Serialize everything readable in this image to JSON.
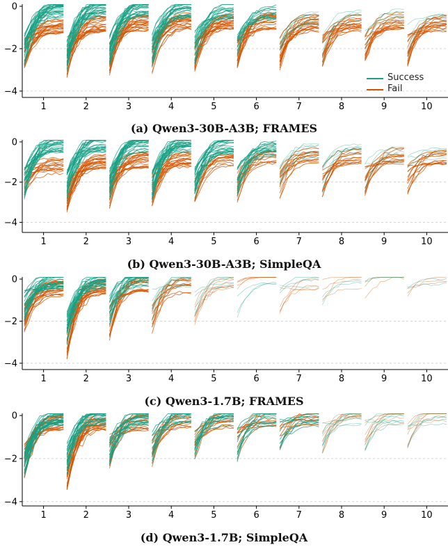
{
  "colors": {
    "success": "#16a085",
    "fail": "#d35400",
    "axis": "#000000",
    "grid": "#bbbbbb"
  },
  "legend": {
    "success_label": "Success",
    "fail_label": "Fail",
    "placement": "bottom-right of panel (a)"
  },
  "chart_data": [
    {
      "type": "line",
      "title": "(a) Qwen3-30B-A3B; FRAMES",
      "categories": [
        "1",
        "2",
        "3",
        "4",
        "5",
        "6",
        "7",
        "8",
        "9",
        "10"
      ],
      "ylim": [
        -4.3,
        0.1
      ],
      "yticks": [
        0,
        -2,
        -4
      ],
      "grid": "dashed horizontal at -2 and -4",
      "series": [
        {
          "name": "Success",
          "start": [
            -2.4,
            -2.6,
            -2.5,
            -2.4,
            -2.3,
            -2.3,
            -2.2,
            -2.3,
            -2.2,
            -2.0
          ],
          "end": [
            -0.15,
            -0.1,
            -0.12,
            -0.15,
            -0.2,
            -0.3,
            -0.5,
            -0.6,
            -0.5,
            -0.6
          ],
          "density": [
            1.0,
            1.0,
            1.0,
            0.9,
            0.6,
            0.45,
            0.3,
            0.2,
            0.15,
            0.15
          ]
        },
        {
          "name": "Fail",
          "start": [
            -2.6,
            -2.9,
            -2.8,
            -2.7,
            -2.6,
            -2.6,
            -2.5,
            -2.5,
            -2.4,
            -2.4
          ],
          "end": [
            -0.9,
            -0.8,
            -0.8,
            -0.7,
            -0.7,
            -0.7,
            -0.8,
            -0.8,
            -0.7,
            -0.8
          ],
          "density": [
            0.9,
            0.9,
            0.9,
            0.9,
            0.9,
            0.8,
            0.8,
            0.7,
            0.6,
            0.6
          ]
        }
      ]
    },
    {
      "type": "line",
      "title": "(b) Qwen3-30B-A3B; SimpleQA",
      "categories": [
        "1",
        "2",
        "3",
        "4",
        "5",
        "6",
        "7",
        "8",
        "9",
        "10"
      ],
      "ylim": [
        -4.5,
        0.1
      ],
      "yticks": [
        0,
        -2,
        -4
      ],
      "grid": "dashed horizontal at -2 and -4",
      "series": [
        {
          "name": "Success",
          "start": [
            -2.4,
            -2.5,
            -2.4,
            -2.4,
            -2.4,
            -2.3,
            -2.2,
            -2.1,
            -2.0,
            -1.8
          ],
          "end": [
            -0.1,
            -0.1,
            -0.1,
            -0.1,
            -0.2,
            -0.3,
            -0.4,
            -0.5,
            -0.6,
            -0.5
          ],
          "density": [
            1.0,
            1.0,
            1.0,
            1.0,
            0.9,
            0.6,
            0.3,
            0.25,
            0.2,
            0.15
          ]
        },
        {
          "name": "Fail",
          "start": [
            -2.3,
            -3.2,
            -2.8,
            -2.7,
            -2.6,
            -2.5,
            -2.4,
            -2.3,
            -2.3,
            -2.2
          ],
          "end": [
            -1.2,
            -1.0,
            -0.9,
            -0.9,
            -0.8,
            -0.8,
            -0.7,
            -0.7,
            -0.7,
            -0.7
          ],
          "density": [
            0.6,
            0.9,
            0.9,
            0.8,
            0.5,
            0.5,
            0.5,
            0.5,
            0.5,
            0.5
          ]
        }
      ]
    },
    {
      "type": "line",
      "title": "(c) Qwen3-1.7B; FRAMES",
      "categories": [
        "1",
        "2",
        "3",
        "4",
        "5",
        "6",
        "7",
        "8",
        "9",
        "10"
      ],
      "ylim": [
        -4.3,
        0.1
      ],
      "yticks": [
        0,
        -2,
        -4
      ],
      "grid": "dashed horizontal at -2 and -4",
      "series": [
        {
          "name": "Success",
          "start": [
            -1.6,
            -2.6,
            -1.8,
            -1.6,
            -1.4,
            -1.5,
            -1.2,
            -1.3,
            -1.2,
            -1.3
          ],
          "end": [
            -0.05,
            -0.05,
            -0.05,
            -0.1,
            -0.1,
            -0.05,
            -0.05,
            -0.05,
            -0.05,
            -0.05
          ],
          "density": [
            1.0,
            0.9,
            0.6,
            0.3,
            0.2,
            0.1,
            0.1,
            0.08,
            0.05,
            0.05
          ]
        },
        {
          "name": "Fail",
          "start": [
            -2.2,
            -3.4,
            -2.4,
            -2.2,
            -1.8,
            -1.2,
            -1.3,
            -1.0,
            -0.8,
            -0.8
          ],
          "end": [
            -0.4,
            -0.4,
            -0.3,
            -0.3,
            -0.2,
            -0.1,
            -0.1,
            -0.1,
            -0.05,
            -0.05
          ],
          "density": [
            0.9,
            0.9,
            0.6,
            0.4,
            0.3,
            0.2,
            0.2,
            0.15,
            0.1,
            0.1
          ]
        }
      ]
    },
    {
      "type": "line",
      "title": "(d) Qwen3-1.7B; SimpleQA",
      "categories": [
        "1",
        "2",
        "3",
        "4",
        "5",
        "6",
        "7",
        "8",
        "9",
        "10"
      ],
      "ylim": [
        -4.2,
        0.1
      ],
      "yticks": [
        0,
        -2,
        -4
      ],
      "grid": "dashed horizontal at -2 and -4",
      "series": [
        {
          "name": "Success",
          "start": [
            -2.4,
            -2.3,
            -1.9,
            -1.8,
            -1.6,
            -1.7,
            -1.3,
            -1.4,
            -1.2,
            -1.2
          ],
          "end": [
            -0.05,
            -0.05,
            -0.1,
            -0.1,
            -0.1,
            -0.1,
            -0.1,
            -0.1,
            -0.05,
            -0.05
          ],
          "density": [
            1.0,
            0.9,
            0.7,
            0.5,
            0.45,
            0.4,
            0.35,
            0.3,
            0.25,
            0.2
          ]
        },
        {
          "name": "Fail",
          "start": [
            -2.4,
            -3.0,
            -2.0,
            -1.9,
            -1.6,
            -1.6,
            -1.5,
            -1.4,
            -1.4,
            -1.3
          ],
          "end": [
            -0.3,
            -0.3,
            -0.3,
            -0.2,
            -0.2,
            -0.2,
            -0.15,
            -0.1,
            -0.1,
            -0.1
          ],
          "density": [
            0.9,
            0.9,
            0.6,
            0.5,
            0.45,
            0.4,
            0.35,
            0.3,
            0.25,
            0.25
          ]
        }
      ]
    }
  ]
}
